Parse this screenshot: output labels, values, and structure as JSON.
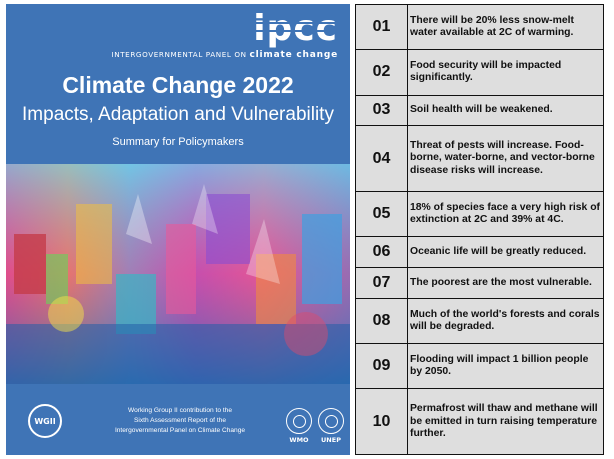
{
  "cover": {
    "logo": "ipcc",
    "org_prefix": "INTERGOVERNMENTAL PANEL ON",
    "org_suffix": "climate change",
    "title": "Climate Change 2022",
    "subtitle": "Impacts, Adaptation and Vulnerability",
    "document_type": "Summary for Policymakers",
    "badge": "WGII",
    "contribution_lines": [
      "Working Group II contribution to the",
      "Sixth Assessment Report of the",
      "Intergovernmental Panel on Climate Change"
    ],
    "partner_logos": [
      "WMO",
      "UNEP"
    ],
    "colors": {
      "background": "#3f74b6",
      "text": "#ffffff"
    }
  },
  "impacts": [
    {
      "number": "01",
      "text": "There will be 20% less snow-melt water available at 2C of warming."
    },
    {
      "number": "02",
      "text": "Food security will be impacted significantly."
    },
    {
      "number": "03",
      "text": "Soil health will be weakened."
    },
    {
      "number": "04",
      "text": "Threat of pests will increase. Food-borne, water-borne, and vector-borne disease risks will increase."
    },
    {
      "number": "05",
      "text": "18% of species face a very high risk of extinction at 2C and 39% at 4C."
    },
    {
      "number": "06",
      "text": "Oceanic life will be greatly reduced."
    },
    {
      "number": "07",
      "text": "The poorest are the most vulnerable."
    },
    {
      "number": "08",
      "text": "Much of the world's forests and corals will be degraded."
    },
    {
      "number": "09",
      "text": "Flooding will impact 1 billion people by 2050."
    },
    {
      "number": "10",
      "text": "Permafrost will thaw and methane will be emitted in turn raising temperature further."
    }
  ],
  "table_colors": {
    "cell": "#dedede",
    "border": "#111111"
  }
}
